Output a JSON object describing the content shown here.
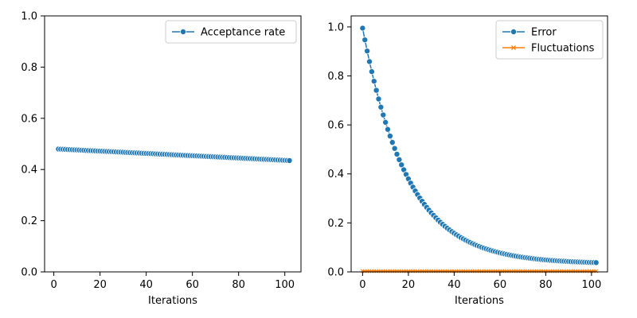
{
  "chart_data": [
    {
      "type": "line",
      "title": "",
      "xlabel": "Iterations",
      "ylabel": "",
      "xlim": [
        -4,
        107
      ],
      "ylim": [
        0,
        1
      ],
      "xticks": [
        "0",
        "20",
        "40",
        "60",
        "80",
        "100"
      ],
      "xtick_values": [
        0,
        20,
        40,
        60,
        80,
        100
      ],
      "yticks": [
        "0.0",
        "0.2",
        "0.4",
        "0.6",
        "0.8",
        "1.0"
      ],
      "ytick_values": [
        0,
        0.2,
        0.4,
        0.6,
        0.8,
        1.0
      ],
      "grid": false,
      "legend_position": "top-right",
      "series": [
        {
          "name": "Acceptance rate",
          "color": "#1f77b4",
          "marker": "circle",
          "x_start": 2,
          "x_end": 102,
          "x_step": 1,
          "y_start": 0.48,
          "y_end": 0.435,
          "curve": "linear"
        }
      ]
    },
    {
      "type": "line",
      "title": "",
      "xlabel": "Iterations",
      "ylabel": "",
      "xlim": [
        -5,
        107
      ],
      "ylim": [
        0,
        1.045
      ],
      "xticks": [
        "0",
        "20",
        "40",
        "60",
        "80",
        "100"
      ],
      "xtick_values": [
        0,
        20,
        40,
        60,
        80,
        100
      ],
      "yticks": [
        "0.0",
        "0.2",
        "0.4",
        "0.6",
        "0.8",
        "1.0"
      ],
      "ytick_values": [
        0,
        0.2,
        0.4,
        0.6,
        0.8,
        1.0
      ],
      "grid": false,
      "legend_position": "top-right",
      "series": [
        {
          "name": "Error",
          "color": "#1f77b4",
          "marker": "circle",
          "x_start": 0,
          "x_end": 102,
          "x_step": 1,
          "y_start": 0.995,
          "y_end": 0.038,
          "curve": "exponential",
          "decay": 0.051
        },
        {
          "name": "Fluctuations",
          "color": "#ff7f0e",
          "marker": "x",
          "x_start": 0,
          "x_end": 102,
          "x_step": 1,
          "y_start": 0.003,
          "y_end": 0.003,
          "curve": "linear"
        }
      ]
    }
  ]
}
